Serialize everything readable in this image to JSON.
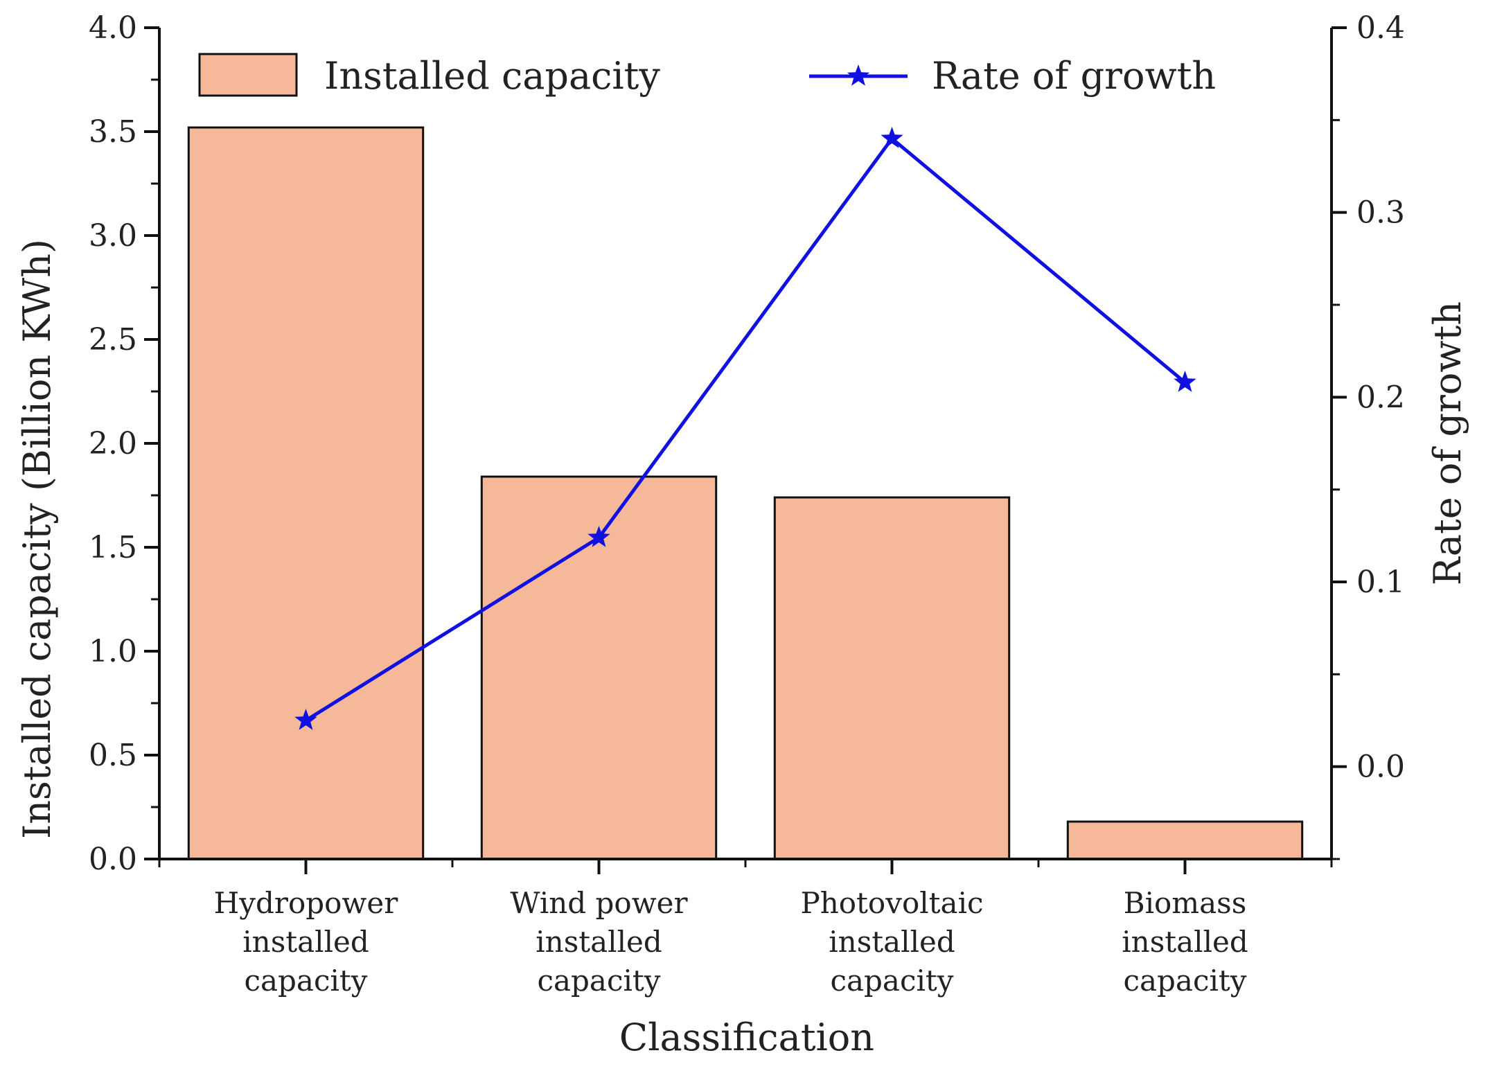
{
  "chart_data": {
    "type": "bar",
    "categories": [
      [
        "Hydropower",
        "installed",
        "capacity"
      ],
      [
        "Wind power",
        "installed",
        "capacity"
      ],
      [
        "Photovoltaic",
        "installed",
        "capacity"
      ],
      [
        "Biomass",
        "installed",
        "capacity"
      ]
    ],
    "series": [
      {
        "name": "Installed capacity",
        "type": "bar",
        "axis": "left",
        "color": "#f5b99a",
        "values": [
          3.52,
          1.84,
          1.74,
          0.18
        ]
      },
      {
        "name": "Rate of growth",
        "type": "line",
        "axis": "right",
        "color": "#1010e0",
        "marker": "star",
        "values": [
          0.025,
          0.124,
          0.34,
          0.208
        ]
      }
    ],
    "xlabel": "Classification",
    "ylabel": "Installed capacity (Billion KWh)",
    "y2label": "Rate of growth",
    "ylim": [
      0,
      4.0
    ],
    "y2lim": [
      -0.05,
      0.4
    ],
    "yticks": [
      "0.0",
      "0.5",
      "1.0",
      "1.5",
      "2.0",
      "2.5",
      "3.0",
      "3.5",
      "4.0"
    ],
    "y2ticks": [
      "0.0",
      "0.1",
      "0.2",
      "0.3",
      "0.4"
    ],
    "legend_position": "top",
    "grid": false
  }
}
